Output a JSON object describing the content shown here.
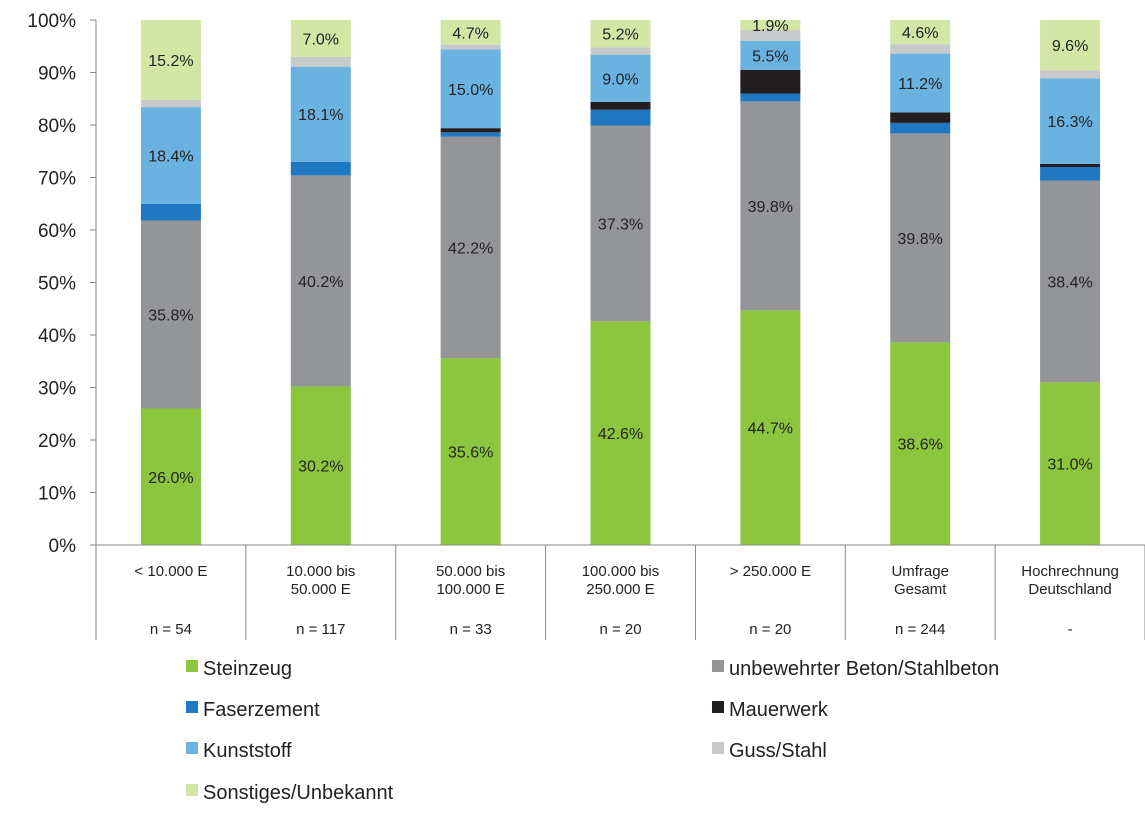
{
  "chart_data": {
    "type": "bar",
    "stacked": true,
    "ylim": [
      0,
      100
    ],
    "y_ticks": [
      "0%",
      "10%",
      "20%",
      "30%",
      "40%",
      "50%",
      "60%",
      "70%",
      "80%",
      "90%",
      "100%"
    ],
    "y_tick_values": [
      0,
      10,
      20,
      30,
      40,
      50,
      60,
      70,
      80,
      90,
      100
    ],
    "categories": [
      [
        "< 10.000 E"
      ],
      [
        "10.000 bis",
        "50.000 E"
      ],
      [
        "50.000 bis",
        "100.000 E"
      ],
      [
        "100.000 bis",
        "250.000 E"
      ],
      [
        "> 250.000 E"
      ],
      [
        "Umfrage",
        "Gesamt"
      ],
      [
        "Hochrechnung",
        "Deutschland"
      ]
    ],
    "n_values": [
      "n = 54",
      "n = 117",
      "n = 33",
      "n = 20",
      "n = 20",
      "n = 244",
      "-"
    ],
    "series": [
      {
        "name": "Steinzeug",
        "color": "#8cc63f",
        "values": [
          26.0,
          30.2,
          35.6,
          42.6,
          44.7,
          38.6,
          31.0
        ],
        "labels": [
          "26.0%",
          "30.2%",
          "35.6%",
          "42.6%",
          "44.7%",
          "38.6%",
          "31.0%"
        ]
      },
      {
        "name": "unbewehrter Beton/Stahlbeton",
        "color": "#939598",
        "values": [
          35.8,
          40.2,
          42.2,
          37.3,
          39.8,
          39.8,
          38.4
        ],
        "labels": [
          "35.8%",
          "40.2%",
          "42.2%",
          "37.3%",
          "39.8%",
          "39.8%",
          "38.4%"
        ]
      },
      {
        "name": "Faserzement",
        "color": "#1f78c1",
        "values": [
          3.2,
          2.6,
          0.8,
          3.0,
          1.5,
          2.0,
          2.6
        ],
        "labels": [
          "",
          "",
          "",
          "",
          "",
          "",
          ""
        ]
      },
      {
        "name": "Mauerwerk",
        "color": "#231f20",
        "values": [
          0.0,
          0.0,
          0.8,
          1.5,
          4.5,
          2.0,
          0.6
        ],
        "labels": [
          "",
          "",
          "",
          "",
          "",
          "",
          ""
        ]
      },
      {
        "name": "Kunststoff",
        "color": "#6ab2e0",
        "values": [
          18.4,
          18.1,
          15.0,
          9.0,
          5.5,
          11.2,
          16.3
        ],
        "labels": [
          "18.4%",
          "18.1%",
          "15.0%",
          "9.0%",
          "5.5%",
          "11.2%",
          "16.3%"
        ]
      },
      {
        "name": "Guss/Stahl",
        "color": "#c8c9cb",
        "values": [
          1.4,
          1.9,
          0.9,
          1.4,
          2.1,
          1.8,
          1.5
        ],
        "labels": [
          "",
          "",
          "",
          "",
          "",
          "",
          ""
        ]
      },
      {
        "name": "Sonstiges/Unbekannt",
        "color": "#d2e6a6",
        "values": [
          15.2,
          7.0,
          4.7,
          5.2,
          1.9,
          4.6,
          9.6
        ],
        "labels": [
          "15.2%",
          "7.0%",
          "4.7%",
          "5.2%",
          "1.9%",
          "4.6%",
          "9.6%"
        ]
      }
    ],
    "legend": {
      "placement": "bottom",
      "entries": [
        "Steinzeug",
        "unbewehrter Beton/Stahlbeton",
        "Faserzement",
        "Mauerwerk",
        "Kunststoff",
        "Guss/Stahl",
        "Sonstiges/Unbekannt"
      ]
    },
    "grid": false
  }
}
